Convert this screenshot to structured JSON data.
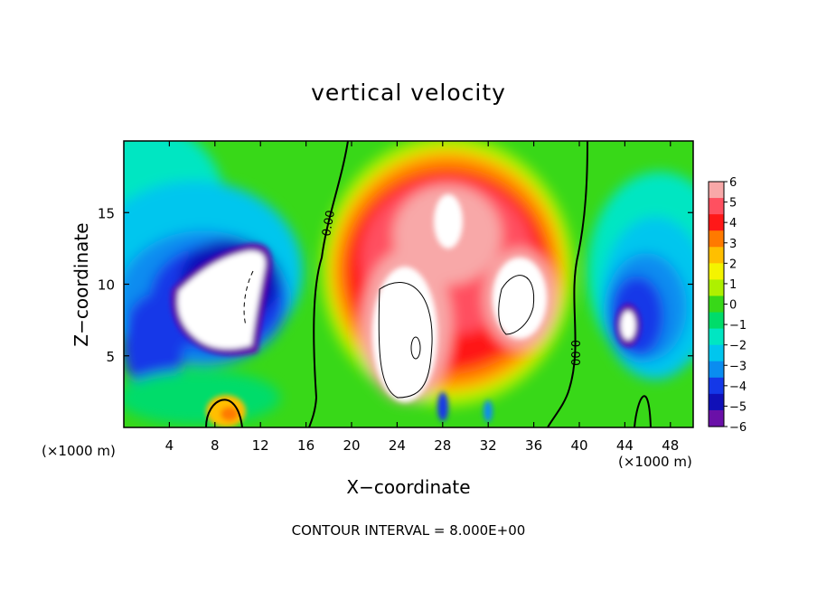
{
  "chart_data": {
    "type": "heatmap",
    "title": "vertical velocity",
    "xlabel": "X−coordinate",
    "ylabel": "Z−coordinate",
    "x_unit_left": "(×1000 m)",
    "x_unit_right": "(×1000 m)",
    "footer": "CONTOUR INTERVAL = 8.000E+00",
    "xlim": [
      0,
      50
    ],
    "ylim": [
      0,
      20
    ],
    "xticks": [
      4,
      8,
      12,
      16,
      20,
      24,
      28,
      32,
      36,
      40,
      44,
      48
    ],
    "xtick_labels": [
      "4",
      "8",
      "12",
      "16",
      "20",
      "24",
      "28",
      "32",
      "36",
      "40",
      "44",
      "48"
    ],
    "yticks": [
      5,
      10,
      15
    ],
    "ytick_labels": [
      "5",
      "10",
      "15"
    ],
    "colorbar": {
      "range": [
        -6,
        6
      ],
      "tick_labels": [
        "6",
        "5",
        "4",
        "3",
        "2",
        "1",
        "0",
        "−1",
        "−2",
        "−3",
        "−4",
        "−5",
        "−6"
      ],
      "colors": [
        "#f8a8a8",
        "#ff5060",
        "#ff1818",
        "#ff7a00",
        "#ffbf00",
        "#f4f400",
        "#aef000",
        "#38d818",
        "#00dc6a",
        "#00e6c2",
        "#00c6ee",
        "#0a8cf0",
        "#1438e8",
        "#1010b8",
        "#6a10a8"
      ]
    },
    "contour_labels": [
      "0.00",
      "0.00"
    ],
    "features": [
      {
        "kind": "updraft",
        "x": 24.5,
        "z": 6.0,
        "value": 10
      },
      {
        "kind": "updraft",
        "x": 34.0,
        "z": 8.0,
        "value": 9
      },
      {
        "kind": "updraft",
        "x": 28.5,
        "z": 15.0,
        "value": 9
      },
      {
        "kind": "downdraft",
        "x": 10.0,
        "z": 9.0,
        "value": -9
      },
      {
        "kind": "downdraft",
        "x": 44.5,
        "z": 7.0,
        "value": -7
      }
    ]
  }
}
